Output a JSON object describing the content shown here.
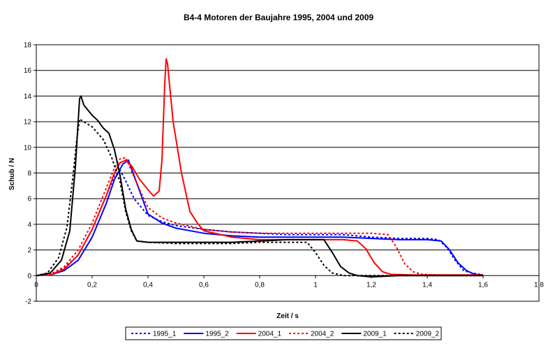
{
  "chart_data": {
    "type": "line",
    "title": "B4-4 Motoren der Baujahre 1995, 2004 und 2009",
    "xlabel": "Zeit / s",
    "ylabel": "Schub / N",
    "xlim": [
      0,
      1.8
    ],
    "ylim": [
      -2,
      18
    ],
    "x_ticks": [
      0,
      0.2,
      0.4,
      0.6,
      0.8,
      1.0,
      1.2,
      1.4,
      1.6,
      1.8
    ],
    "x_tick_labels": [
      "0",
      "0,2",
      "0,4",
      "0,6",
      "0,8",
      "1",
      "1,2",
      "1,4",
      "1,6",
      "1,8"
    ],
    "y_ticks": [
      -2,
      0,
      2,
      4,
      6,
      8,
      10,
      12,
      14,
      16,
      18
    ],
    "y_tick_labels": [
      "-2",
      "0",
      "2",
      "4",
      "6",
      "8",
      "10",
      "12",
      "14",
      "16",
      "18"
    ],
    "grid": "horizontal",
    "legend_position": "bottom",
    "series": [
      {
        "name": "1995_1",
        "color": "#0000ff",
        "dash": "dotted",
        "points": [
          [
            0,
            0
          ],
          [
            0.05,
            0.1
          ],
          [
            0.1,
            0.6
          ],
          [
            0.15,
            1.6
          ],
          [
            0.2,
            3.6
          ],
          [
            0.25,
            6.2
          ],
          [
            0.28,
            7.8
          ],
          [
            0.3,
            8.2
          ],
          [
            0.32,
            7.4
          ],
          [
            0.35,
            6
          ],
          [
            0.4,
            4.7
          ],
          [
            0.45,
            4.2
          ],
          [
            0.5,
            3.9
          ],
          [
            0.6,
            3.6
          ],
          [
            0.7,
            3.4
          ],
          [
            0.8,
            3.3
          ],
          [
            0.9,
            3.2
          ],
          [
            1.0,
            3.2
          ],
          [
            1.1,
            3.2
          ],
          [
            1.2,
            3
          ],
          [
            1.3,
            2.9
          ],
          [
            1.4,
            2.9
          ],
          [
            1.44,
            2.8
          ],
          [
            1.47,
            2.2
          ],
          [
            1.5,
            1.2
          ],
          [
            1.53,
            0.4
          ],
          [
            1.56,
            0.2
          ],
          [
            1.6,
            0.05
          ]
        ]
      },
      {
        "name": "1995_2",
        "color": "#0000ff",
        "dash": "solid",
        "points": [
          [
            0,
            0
          ],
          [
            0.05,
            0.05
          ],
          [
            0.1,
            0.4
          ],
          [
            0.15,
            1.2
          ],
          [
            0.2,
            3
          ],
          [
            0.25,
            5.6
          ],
          [
            0.28,
            7.5
          ],
          [
            0.31,
            8.7
          ],
          [
            0.33,
            9
          ],
          [
            0.35,
            7.8
          ],
          [
            0.38,
            6
          ],
          [
            0.4,
            4.8
          ],
          [
            0.45,
            4.1
          ],
          [
            0.5,
            3.7
          ],
          [
            0.6,
            3.3
          ],
          [
            0.7,
            3.1
          ],
          [
            0.8,
            3
          ],
          [
            0.9,
            3
          ],
          [
            1.0,
            3
          ],
          [
            1.1,
            3
          ],
          [
            1.2,
            2.9
          ],
          [
            1.3,
            2.8
          ],
          [
            1.4,
            2.8
          ],
          [
            1.45,
            2.7
          ],
          [
            1.48,
            2
          ],
          [
            1.51,
            1
          ],
          [
            1.54,
            0.4
          ],
          [
            1.57,
            0.1
          ],
          [
            1.6,
            0.05
          ]
        ]
      },
      {
        "name": "2004_1",
        "color": "#ff0000",
        "dash": "solid",
        "points": [
          [
            0,
            0
          ],
          [
            0.05,
            0.05
          ],
          [
            0.1,
            0.5
          ],
          [
            0.15,
            1.6
          ],
          [
            0.2,
            3.6
          ],
          [
            0.25,
            6.2
          ],
          [
            0.28,
            8
          ],
          [
            0.3,
            8.8
          ],
          [
            0.32,
            9
          ],
          [
            0.34,
            8.6
          ],
          [
            0.37,
            7.5
          ],
          [
            0.4,
            6.7
          ],
          [
            0.42,
            6.2
          ],
          [
            0.44,
            6.6
          ],
          [
            0.45,
            9
          ],
          [
            0.46,
            15
          ],
          [
            0.465,
            16.9
          ],
          [
            0.47,
            16.5
          ],
          [
            0.49,
            12
          ],
          [
            0.52,
            8
          ],
          [
            0.55,
            5
          ],
          [
            0.58,
            4
          ],
          [
            0.6,
            3.5
          ],
          [
            0.7,
            3
          ],
          [
            0.8,
            2.8
          ],
          [
            0.9,
            2.8
          ],
          [
            1.0,
            2.8
          ],
          [
            1.1,
            2.8
          ],
          [
            1.15,
            2.7
          ],
          [
            1.18,
            2.1
          ],
          [
            1.21,
            1
          ],
          [
            1.24,
            0.3
          ],
          [
            1.27,
            0.1
          ],
          [
            1.35,
            0.05
          ],
          [
            1.6,
            0.05
          ]
        ]
      },
      {
        "name": "2004_2",
        "color": "#ff0000",
        "dash": "dotted",
        "points": [
          [
            0,
            0
          ],
          [
            0.05,
            0.1
          ],
          [
            0.1,
            0.7
          ],
          [
            0.15,
            2
          ],
          [
            0.2,
            4.1
          ],
          [
            0.25,
            6.8
          ],
          [
            0.28,
            8.4
          ],
          [
            0.3,
            9.1
          ],
          [
            0.32,
            9.2
          ],
          [
            0.34,
            8.2
          ],
          [
            0.37,
            6.7
          ],
          [
            0.4,
            5.3
          ],
          [
            0.45,
            4.5
          ],
          [
            0.5,
            4.1
          ],
          [
            0.6,
            3.6
          ],
          [
            0.7,
            3.4
          ],
          [
            0.8,
            3.3
          ],
          [
            0.9,
            3.3
          ],
          [
            1.0,
            3.3
          ],
          [
            1.1,
            3.3
          ],
          [
            1.2,
            3.3
          ],
          [
            1.26,
            3.2
          ],
          [
            1.29,
            2.2
          ],
          [
            1.32,
            0.9
          ],
          [
            1.35,
            0.3
          ],
          [
            1.38,
            0.1
          ],
          [
            1.45,
            0.05
          ],
          [
            1.6,
            0.05
          ]
        ]
      },
      {
        "name": "2009_1",
        "color": "#000000",
        "dash": "solid",
        "points": [
          [
            0,
            0
          ],
          [
            0.05,
            0.2
          ],
          [
            0.09,
            1.2
          ],
          [
            0.12,
            3.5
          ],
          [
            0.14,
            8.5
          ],
          [
            0.155,
            13.8
          ],
          [
            0.16,
            14
          ],
          [
            0.17,
            13.3
          ],
          [
            0.2,
            12.5
          ],
          [
            0.22,
            12.1
          ],
          [
            0.24,
            11.5
          ],
          [
            0.26,
            11.1
          ],
          [
            0.28,
            9.8
          ],
          [
            0.3,
            7.8
          ],
          [
            0.32,
            5.2
          ],
          [
            0.34,
            3.6
          ],
          [
            0.36,
            2.7
          ],
          [
            0.4,
            2.6
          ],
          [
            0.5,
            2.6
          ],
          [
            0.6,
            2.6
          ],
          [
            0.7,
            2.6
          ],
          [
            0.8,
            2.7
          ],
          [
            0.9,
            2.8
          ],
          [
            1.0,
            2.8
          ],
          [
            1.03,
            2.8
          ],
          [
            1.06,
            1.8
          ],
          [
            1.09,
            0.7
          ],
          [
            1.12,
            0.2
          ],
          [
            1.15,
            0
          ],
          [
            1.2,
            -0.1
          ],
          [
            1.3,
            0
          ],
          [
            1.6,
            0
          ]
        ]
      },
      {
        "name": "2009_2",
        "color": "#000000",
        "dash": "dotted",
        "points": [
          [
            0,
            0
          ],
          [
            0.04,
            0.2
          ],
          [
            0.08,
            1.4
          ],
          [
            0.11,
            3.8
          ],
          [
            0.13,
            7.5
          ],
          [
            0.145,
            10.6
          ],
          [
            0.155,
            12.2
          ],
          [
            0.17,
            12
          ],
          [
            0.2,
            11.6
          ],
          [
            0.24,
            10.6
          ],
          [
            0.27,
            9.2
          ],
          [
            0.3,
            7.3
          ],
          [
            0.32,
            5
          ],
          [
            0.34,
            3.5
          ],
          [
            0.36,
            2.7
          ],
          [
            0.4,
            2.6
          ],
          [
            0.5,
            2.5
          ],
          [
            0.6,
            2.5
          ],
          [
            0.7,
            2.5
          ],
          [
            0.8,
            2.6
          ],
          [
            0.9,
            2.6
          ],
          [
            0.97,
            2.6
          ],
          [
            1.0,
            1.8
          ],
          [
            1.03,
            0.8
          ],
          [
            1.06,
            0.2
          ],
          [
            1.1,
            0
          ],
          [
            1.2,
            0
          ],
          [
            1.6,
            0
          ]
        ]
      }
    ]
  }
}
